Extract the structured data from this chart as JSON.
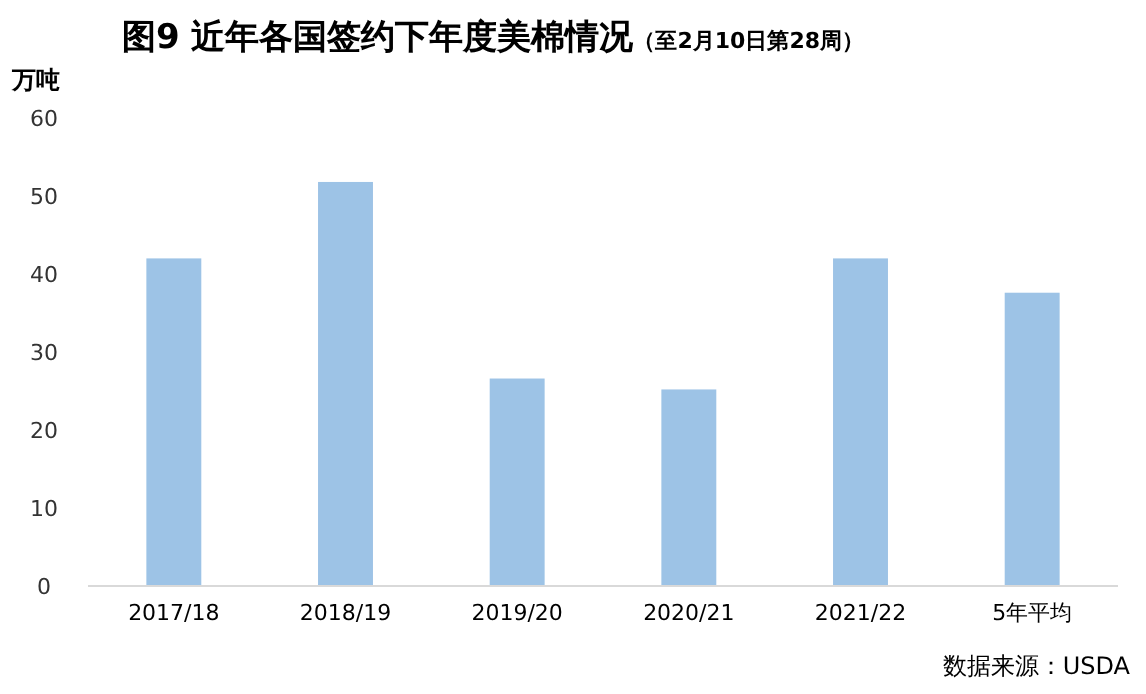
{
  "chart_data": {
    "type": "bar",
    "title": "图9  近年各国签约下年度美棉情况",
    "subtitle": "（至2月10日第28周）",
    "ylabel": "万吨",
    "categories": [
      "2017/18",
      "2018/19",
      "2019/20",
      "2020/21",
      "2021/22",
      "5年平均"
    ],
    "values": [
      42,
      51.8,
      26.6,
      25.2,
      42,
      37.6
    ],
    "color": "#9dc3e6",
    "ylim": [
      0,
      60
    ],
    "yticks": [
      0,
      10,
      20,
      30,
      40,
      50,
      60
    ],
    "grid": false,
    "annotations": [
      "数据来源：USDA"
    ]
  }
}
